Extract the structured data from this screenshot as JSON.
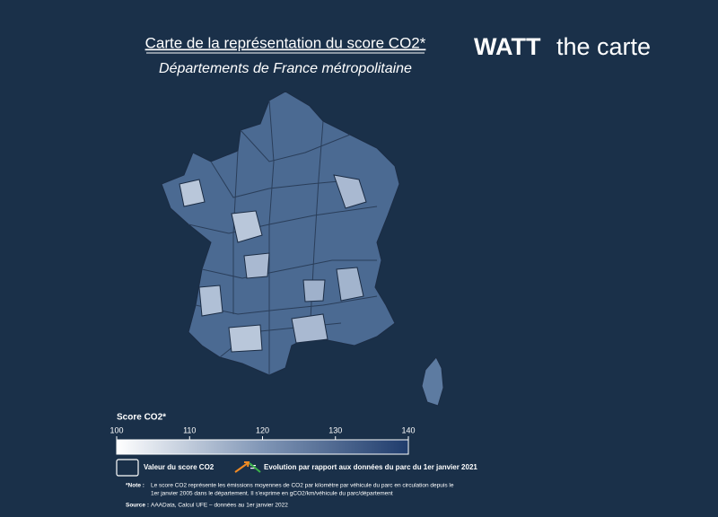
{
  "header": {
    "title": "Carte de la représentation du score CO2*",
    "subtitle": "Départements de France métropolitaine"
  },
  "logo": {
    "bold": "WATT",
    "rest": "the carte"
  },
  "legend": {
    "title": "Score CO2*",
    "range": [
      100,
      140
    ],
    "ticks": [
      100,
      110,
      120,
      130,
      140
    ],
    "items": [
      "Valeur du score CO2",
      "Evolution par rapport aux données du parc du 1er janvier 2021"
    ]
  },
  "note": {
    "label": "*Note :",
    "lines": [
      "Le score CO2 représente les émissions moyennes de CO2 par kilomètre par véhicule du parc en circulation depuis le",
      "1er janvier 2005  dans le département. Il s'exprime en gCO2/km/véhicule du parc/département"
    ]
  },
  "source": {
    "label": "Source :",
    "text": "AAAData, Calcul UFE – données au 1er janvier 2022"
  }
}
